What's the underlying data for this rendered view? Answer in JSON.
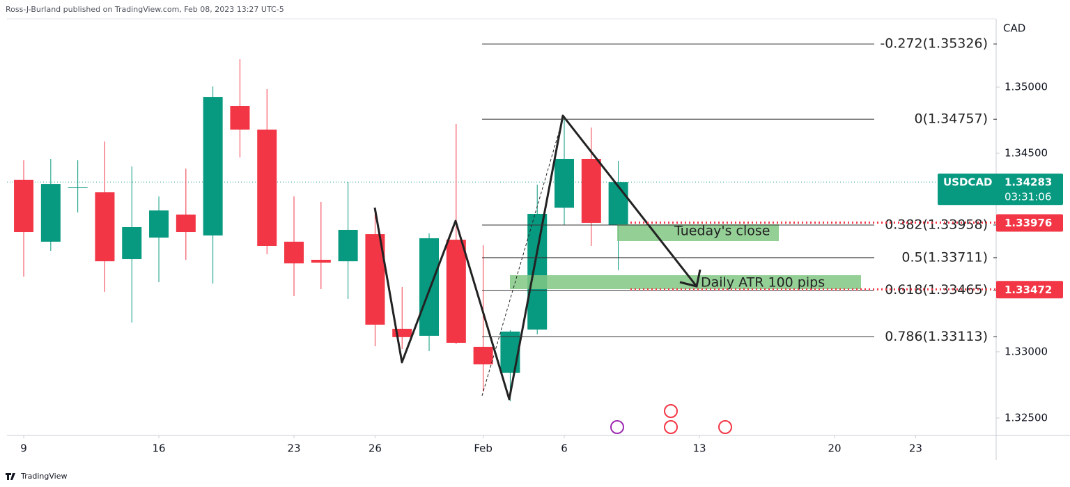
{
  "chart_data": {
    "type": "candlestick",
    "header": "Ross-J-Burland published on TradingView.com, Feb 08, 2023 13:27 UTC-5",
    "symbol": "USDCAD",
    "currency": "CAD",
    "footer": "TradingView",
    "up_color": "#089981",
    "down_color": "#f23645",
    "open": [
      1.343,
      1.33832,
      1.34237,
      1.34205,
      1.337,
      1.33863,
      1.34037,
      1.33879,
      1.34858,
      1.34679,
      1.33832,
      1.33695,
      1.33684,
      1.33889,
      1.33174,
      1.33121,
      1.33847,
      1.33037,
      1.32842,
      1.33168,
      1.34089,
      1.34458,
      1.33958
    ],
    "high": [
      1.34447,
      1.34458,
      1.34447,
      1.34589,
      1.344,
      1.34174,
      1.34384,
      1.35005,
      1.35211,
      1.34984,
      1.34174,
      1.34132,
      1.34284,
      1.34074,
      1.33489,
      1.33895,
      1.34721,
      1.33805,
      1.33163,
      1.34263,
      1.34757,
      1.34695,
      1.34442
    ],
    "low": [
      1.33568,
      1.33763,
      1.34053,
      1.33453,
      1.33221,
      1.33526,
      1.33695,
      1.33516,
      1.34468,
      1.33737,
      1.33421,
      1.33474,
      1.334,
      1.33042,
      1.33021,
      1.33005,
      1.33058,
      1.327,
      1.32626,
      1.33132,
      1.33958,
      1.338,
      1.33616
    ],
    "close": [
      1.33905,
      1.34268,
      1.34242,
      1.33684,
      1.33942,
      1.34068,
      1.33905,
      1.34926,
      1.34679,
      1.338,
      1.33668,
      1.33674,
      1.33921,
      1.33205,
      1.33111,
      1.33858,
      1.33068,
      1.32905,
      1.33153,
      1.34042,
      1.34458,
      1.33974,
      1.34283
    ],
    "xlim": [
      -0.62,
      35.98
    ],
    "xticks": [
      {
        "value": 0,
        "label": "9"
      },
      {
        "value": 5,
        "label": "16"
      },
      {
        "value": 10,
        "label": "23"
      },
      {
        "value": 13,
        "label": "26"
      },
      {
        "value": 17,
        "label": "Feb"
      },
      {
        "value": 20,
        "label": "6"
      },
      {
        "value": 25,
        "label": "13"
      },
      {
        "value": 30,
        "label": "20"
      },
      {
        "value": 33,
        "label": "23"
      }
    ],
    "ylim": [
      1.32368,
      1.35516
    ],
    "yticks": [
      {
        "value": 1.325,
        "label": "1.32500"
      },
      {
        "value": 1.33,
        "label": "1.33000"
      },
      {
        "value": 1.345,
        "label": "1.34500"
      },
      {
        "value": 1.35,
        "label": "1.35000"
      }
    ],
    "last_price": 1.34283,
    "countdown": "03:31:06",
    "price_markers": [
      1.33976,
      1.33472
    ],
    "fib_levels": [
      {
        "value": 1.35326,
        "label": "-0.272(1.35326)"
      },
      {
        "value": 1.34757,
        "label": "0(1.34757)"
      },
      {
        "value": 1.33958,
        "label": "0.382(1.33958)"
      },
      {
        "value": 1.33711,
        "label": "0.5(1.33711)"
      },
      {
        "value": 1.33465,
        "label": "0.618(1.33465)"
      },
      {
        "value": 1.33113,
        "label": "0.786(1.33113)"
      }
    ],
    "annotations": [
      "Tueday's close",
      "Daily ATR 100 pips"
    ]
  }
}
